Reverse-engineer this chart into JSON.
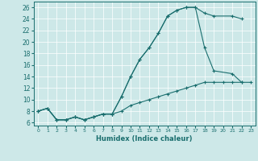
{
  "xlabel": "Humidex (Indice chaleur)",
  "xlim": [
    -0.5,
    23.5
  ],
  "ylim": [
    5.5,
    27
  ],
  "xticks": [
    0,
    1,
    2,
    3,
    4,
    5,
    6,
    7,
    8,
    9,
    10,
    11,
    12,
    13,
    14,
    15,
    16,
    17,
    18,
    19,
    20,
    21,
    22,
    23
  ],
  "yticks": [
    6,
    8,
    10,
    12,
    14,
    16,
    18,
    20,
    22,
    24,
    26
  ],
  "bg_color": "#cde8e8",
  "line_color": "#1a6e6e",
  "series": [
    {
      "x": [
        0,
        1,
        2,
        3,
        4,
        5,
        6,
        7,
        8,
        9,
        10,
        11,
        12,
        13,
        14,
        15,
        16,
        17,
        18,
        19,
        21,
        22
      ],
      "y": [
        8,
        8.5,
        6.5,
        6.5,
        7,
        6.5,
        7,
        7.5,
        7.5,
        10.5,
        14,
        17,
        19,
        21.5,
        24.5,
        25.5,
        26,
        26,
        25,
        24.5,
        24.5,
        24
      ]
    },
    {
      "x": [
        0,
        1,
        2,
        3,
        4,
        5,
        6,
        7,
        8,
        9,
        10,
        11,
        12,
        13,
        14,
        15,
        16,
        17,
        18,
        19,
        21,
        22
      ],
      "y": [
        8,
        8.5,
        6.5,
        6.5,
        7,
        6.5,
        7,
        7.5,
        7.5,
        10.5,
        14,
        17,
        19,
        21.5,
        24.5,
        25.5,
        26,
        26,
        19,
        15,
        14.5,
        13
      ]
    },
    {
      "x": [
        0,
        1,
        2,
        3,
        4,
        5,
        6,
        7,
        8,
        9,
        10,
        11,
        12,
        13,
        14,
        15,
        16,
        17,
        18,
        19,
        20,
        21,
        22,
        23
      ],
      "y": [
        8,
        8.5,
        6.5,
        6.5,
        7,
        6.5,
        7,
        7.5,
        7.5,
        8,
        9,
        9.5,
        10,
        10.5,
        11,
        11.5,
        12,
        12.5,
        13,
        13,
        13,
        13,
        13,
        13
      ]
    }
  ]
}
